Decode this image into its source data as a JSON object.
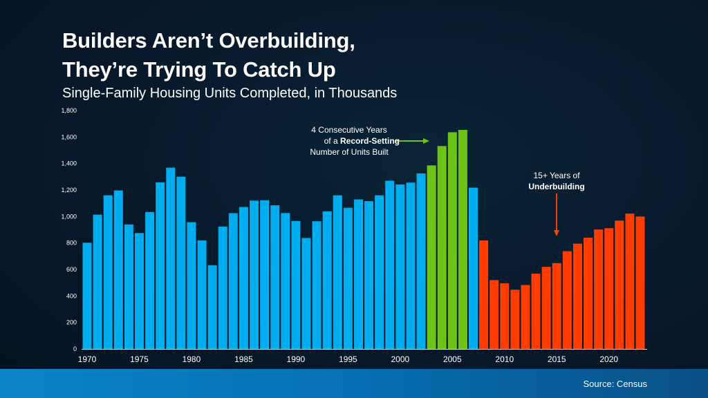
{
  "title_line1": "Builders Aren’t Overbuilding,",
  "title_line2": "They’re Trying To Catch Up",
  "subtitle": "Single-Family Housing Units Completed, in Thousands",
  "source": "Source: Census",
  "chart_data": {
    "type": "bar",
    "title": "Builders Aren’t Overbuilding, They’re Trying To Catch Up",
    "subtitle": "Single-Family Housing Units Completed, in Thousands",
    "xlabel": "",
    "ylabel": "",
    "ylim": [
      0,
      1800
    ],
    "yticks": [
      "0",
      "200",
      "400",
      "600",
      "800",
      "1,000",
      "1,200",
      "1,400",
      "1,600",
      "1,800"
    ],
    "xticks": [
      "1970",
      "1975",
      "1980",
      "1985",
      "1990",
      "1995",
      "2000",
      "2005",
      "2010",
      "2015",
      "2020"
    ],
    "grid": false,
    "colors": {
      "normal": "#00adef",
      "record": "#6cc417",
      "under": "#ff3d00"
    },
    "categories": [
      1970,
      1971,
      1972,
      1973,
      1974,
      1975,
      1976,
      1977,
      1978,
      1979,
      1980,
      1981,
      1982,
      1983,
      1984,
      1985,
      1986,
      1987,
      1988,
      1989,
      1990,
      1991,
      1992,
      1993,
      1994,
      1995,
      1996,
      1997,
      1998,
      1999,
      2000,
      2001,
      2002,
      2003,
      2004,
      2005,
      2006,
      2007,
      2008,
      2009,
      2010,
      2011,
      2012,
      2013,
      2014,
      2015,
      2016,
      2017,
      2018,
      2019,
      2020,
      2021,
      2022,
      2023
    ],
    "values": [
      802,
      1014,
      1160,
      1197,
      940,
      875,
      1034,
      1258,
      1369,
      1301,
      957,
      819,
      632,
      924,
      1025,
      1072,
      1120,
      1123,
      1085,
      1026,
      966,
      838,
      964,
      1039,
      1160,
      1066,
      1129,
      1116,
      1160,
      1270,
      1242,
      1256,
      1325,
      1386,
      1532,
      1636,
      1654,
      1218,
      819,
      520,
      496,
      447,
      483,
      569,
      620,
      648,
      738,
      795,
      840,
      902,
      912,
      969,
      1022,
      1000
    ],
    "groups": {
      "record": [
        2003,
        2004,
        2005,
        2006
      ],
      "under_from": 2008
    },
    "annotations": {
      "record": {
        "line1": "4 Consecutive Years",
        "line2_pre": "of a ",
        "line2_bold": "Record-Setting",
        "line3": "Number of Units Built"
      },
      "under": {
        "line1": "15+ Years of",
        "line2_bold": "Underbuilding"
      }
    }
  }
}
